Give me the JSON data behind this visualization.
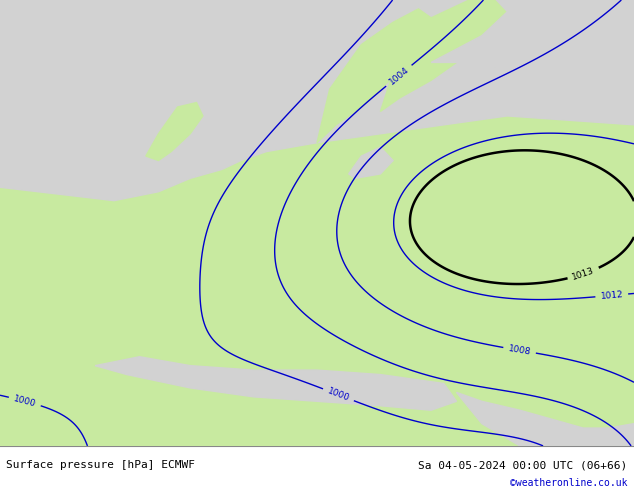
{
  "title_left": "Surface pressure [hPa] ECMWF",
  "title_right": "Sa 04-05-2024 00:00 UTC (06+66)",
  "credit": "©weatheronline.co.uk",
  "fig_width": 6.34,
  "fig_height": 4.9,
  "dpi": 100,
  "ocean_color": "#d2d2d2",
  "land_color": "#c8eaa0",
  "bottom_bar_color": "#ffffff",
  "title_color": "#000000",
  "credit_color": "#0000cc",
  "isobar_blue_color": "#0000cc",
  "isobar_black_color": "#000000",
  "isobar_red_color": "#cc0000",
  "label_fontsize": 6.5,
  "title_fontsize": 8,
  "credit_fontsize": 7
}
